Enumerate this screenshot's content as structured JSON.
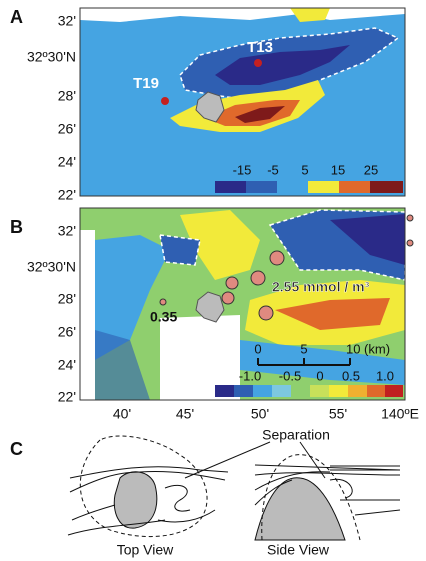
{
  "panels": [
    {
      "label": "A",
      "y_labels": [
        "32'",
        "32º30'N",
        "28'",
        "26'",
        "24'",
        "22'"
      ],
      "annotations": [
        "T13",
        "T19"
      ],
      "colorbar_labels": [
        "-15",
        "-5",
        "5",
        "15",
        "25"
      ]
    },
    {
      "label": "B",
      "y_labels": [
        "32'",
        "32º30'N",
        "28'",
        "26'",
        "24'",
        "22'"
      ],
      "x_labels": [
        "40'",
        "45'",
        "50'",
        "55'",
        "140ºE"
      ],
      "annotations": [
        "2.55 mmol / m³",
        "0.35"
      ],
      "scale_bar_labels": [
        "0",
        "5",
        "10 (km)"
      ],
      "colorbar_labels": [
        "-1.0",
        "-0.5",
        "0",
        "0.5",
        "1.0"
      ]
    },
    {
      "label": "C",
      "annotations": [
        "Separation"
      ],
      "captions": [
        "Top View",
        "Side View"
      ]
    }
  ]
}
